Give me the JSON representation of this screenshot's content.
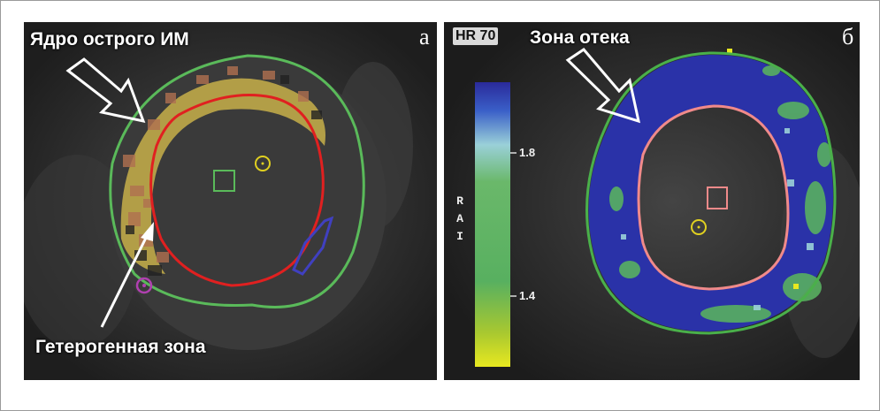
{
  "panel_a": {
    "letter": "а",
    "label_core": "Ядро острого ИМ",
    "label_hetero": "Гетерогенная зона"
  },
  "panel_b": {
    "letter": "б",
    "hr_badge": "HR 70",
    "label_edema": "Зона отека",
    "colorbar": {
      "ticks": [
        "1.8",
        "1.4"
      ],
      "axis_letters": [
        "R",
        "A",
        "I"
      ],
      "colors": [
        "#2a2a9a",
        "#3a5fc8",
        "#9ad0d8",
        "#58b060",
        "#a8c830",
        "#e8e820"
      ]
    }
  }
}
